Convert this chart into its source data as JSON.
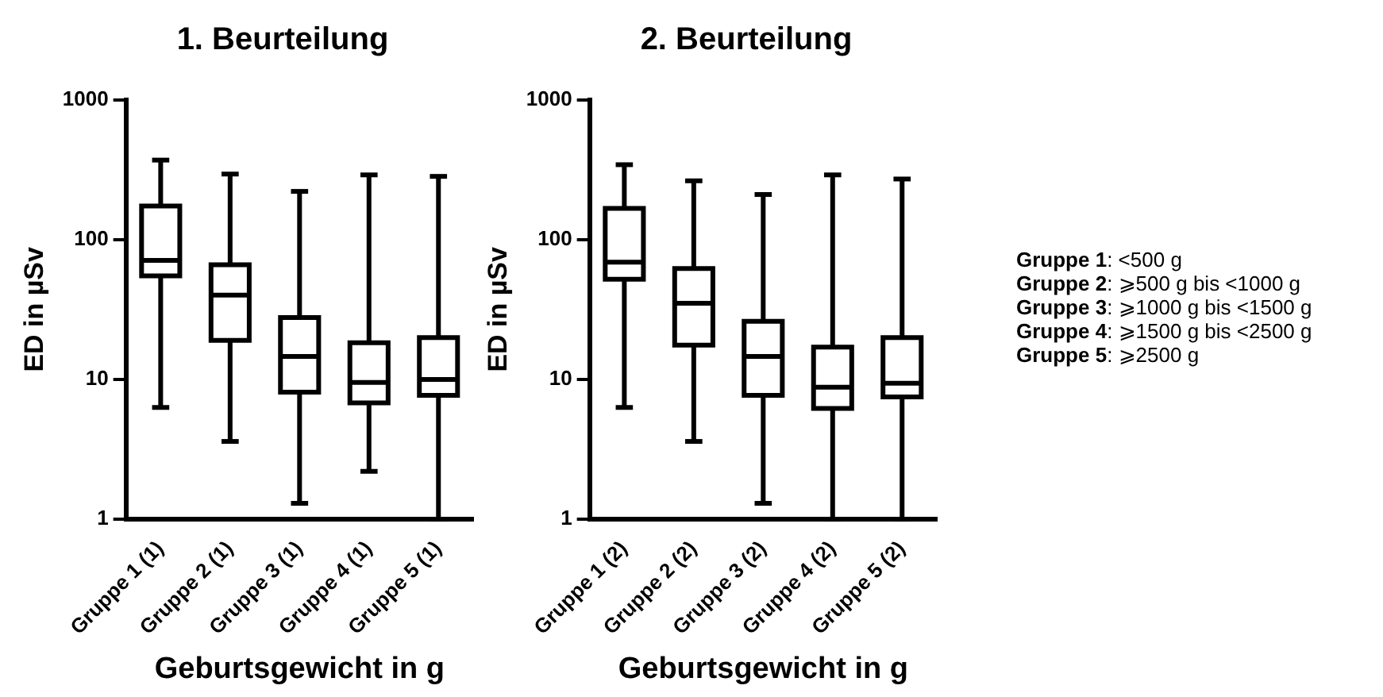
{
  "chart_data": [
    {
      "type": "box",
      "title": "1. Beurteilung",
      "xlabel": "Geburtsgewicht in g",
      "ylabel": "ED in µSv",
      "categories": [
        "Gruppe 1 (1)",
        "Gruppe 2 (1)",
        "Gruppe 3 (1)",
        "Gruppe 4 (1)",
        "Gruppe 5 (1)"
      ],
      "boxes": [
        {
          "low": 6.3,
          "q1": 55,
          "median": 71,
          "q3": 174,
          "high": 370
        },
        {
          "low": 3.6,
          "q1": 19,
          "median": 40,
          "q3": 66,
          "high": 294
        },
        {
          "low": 1.3,
          "q1": 8.1,
          "median": 14.6,
          "q3": 27.7,
          "high": 221
        },
        {
          "low": 2.2,
          "q1": 6.8,
          "median": 9.5,
          "q3": 18.3,
          "high": 290
        },
        {
          "low": 1,
          "q1": 7.7,
          "median": 10,
          "q3": 19.9,
          "high": 283
        }
      ],
      "color": "#000000",
      "log": "y",
      "ylim": [
        1,
        1000
      ],
      "yticks": [
        1,
        10,
        100,
        1000
      ],
      "grid": false,
      "legend": false
    },
    {
      "type": "box",
      "title": "2. Beurteilung",
      "xlabel": "Geburtsgewicht in g",
      "ylabel": "ED in µSv",
      "categories": [
        "Gruppe 1 (2)",
        "Gruppe 2 (2)",
        "Gruppe 3 (2)",
        "Gruppe 4 (2)",
        "Gruppe 5 (2)"
      ],
      "boxes": [
        {
          "low": 6.3,
          "q1": 52,
          "median": 69,
          "q3": 167,
          "high": 343
        },
        {
          "low": 3.6,
          "q1": 17.6,
          "median": 35,
          "q3": 62,
          "high": 263
        },
        {
          "low": 1.3,
          "q1": 7.7,
          "median": 14.6,
          "q3": 26,
          "high": 210
        },
        {
          "low": 1,
          "q1": 6.2,
          "median": 8.8,
          "q3": 17,
          "high": 290
        },
        {
          "low": 1,
          "q1": 7.5,
          "median": 9.4,
          "q3": 19.9,
          "high": 271
        }
      ],
      "color": "#000000",
      "log": "y",
      "ylim": [
        1,
        1000
      ],
      "yticks": [
        1,
        10,
        100,
        1000
      ],
      "grid": false,
      "legend": false,
      "annotations": [
        "Gruppe 1: <500 g",
        "Gruppe 2: ⩾500 g bis <1000 g",
        "Gruppe 3: ⩾1000 g bis <1500 g",
        "Gruppe 4: ⩾1500 g bis <2500 g",
        "Gruppe 5: ⩾2500 g"
      ]
    }
  ]
}
